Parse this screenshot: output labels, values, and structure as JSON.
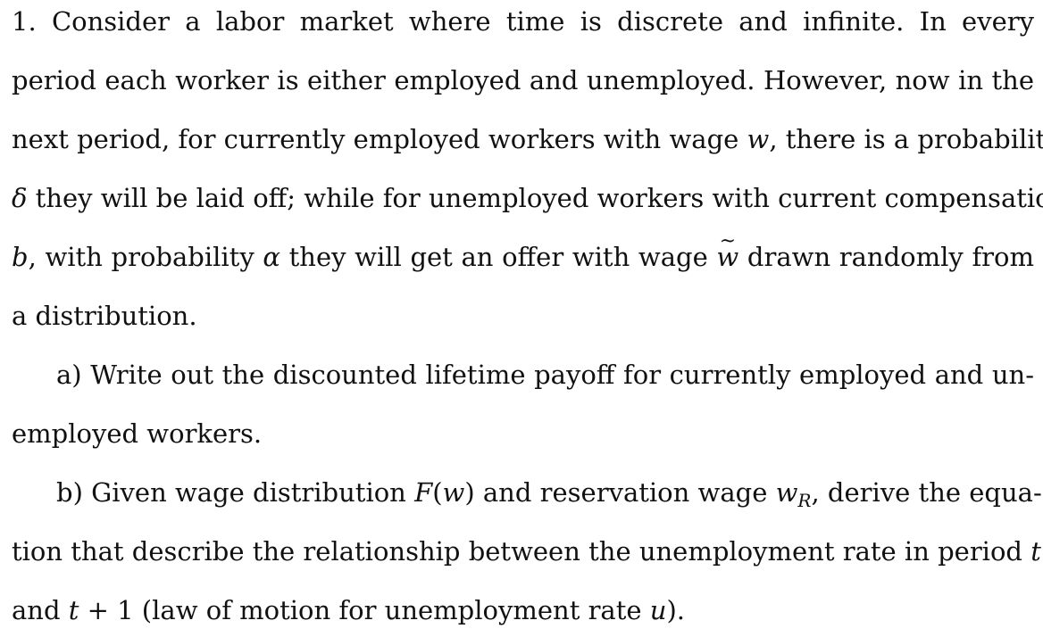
{
  "problem": {
    "lines": [
      "1.  Consider a labor market where time is discrete and infinite.  In every",
      "period each worker is either employed and unemployed.  However, now in the",
      "next period, for currently employed workers with wage ",
      "w",
      ", there is a probability",
      "δ",
      " they will be laid off; while for unemployed workers with current compensation",
      "b",
      ", with probability ",
      "α",
      " they will get an offer with wage ",
      "w",
      " drawn randomly from",
      "a distribution."
    ]
  },
  "part_a": {
    "lines": [
      "a) Write out the discounted lifetime payoff for currently employed and un-",
      "employed workers."
    ]
  },
  "part_b": {
    "segments": [
      "b) Given wage distribution ",
      "F",
      "(",
      "w",
      ") and reservation wage ",
      "w",
      "R",
      ", derive the equa-",
      "tion that describe the relationship between the unemployment rate in period ",
      "t",
      "and ",
      "t",
      " + 1 (law of motion for unemployment rate ",
      "u",
      ")."
    ]
  }
}
